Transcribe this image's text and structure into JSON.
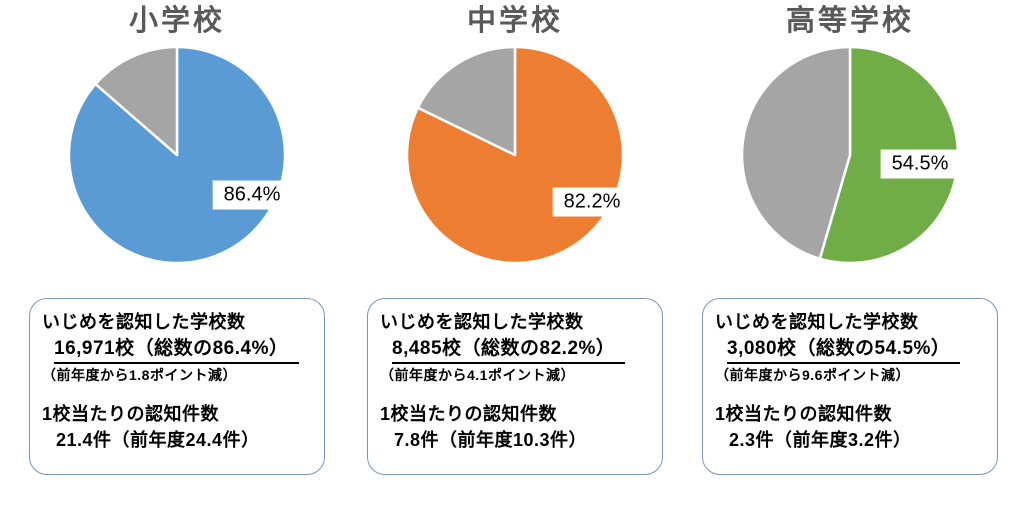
{
  "styles": {
    "title_color": "#595959",
    "box_border": "#7A96B5",
    "slice_gap_color": "#FFFFFF"
  },
  "chart_data": [
    {
      "type": "pie",
      "title": "小学校",
      "values": [
        86.4,
        13.6
      ],
      "colors": [
        "#5B9BD5",
        "#A5A5A5"
      ],
      "data_label": "86.4%",
      "start_angle_deg": 0,
      "direction": "clockwise",
      "legend": "none"
    },
    {
      "type": "pie",
      "title": "中学校",
      "values": [
        82.2,
        17.8
      ],
      "colors": [
        "#ED7D31",
        "#A5A5A5"
      ],
      "data_label": "82.2%",
      "start_angle_deg": 0,
      "direction": "clockwise",
      "legend": "none"
    },
    {
      "type": "pie",
      "title": "高等学校",
      "values": [
        54.5,
        45.5
      ],
      "colors": [
        "#70AD47",
        "#A5A5A5"
      ],
      "data_label": "54.5%",
      "start_angle_deg": 0,
      "direction": "clockwise",
      "legend": "none"
    }
  ],
  "info_boxes": [
    {
      "recognized_label": "いじめを認知した学校数",
      "recognized_value": "16,971校（総数の86.4%）",
      "yoy_change": "（前年度から1.8ポイント減）",
      "per_school_label": "1校当たりの認知件数",
      "per_school_value": "21.4件（前年度24.4件）"
    },
    {
      "recognized_label": "いじめを認知した学校数",
      "recognized_value": "8,485校（総数の82.2%）",
      "yoy_change": "（前年度から4.1ポイント減）",
      "per_school_label": "1校当たりの認知件数",
      "per_school_value": "7.8件（前年度10.3件）"
    },
    {
      "recognized_label": "いじめを認知した学校数",
      "recognized_value": "3,080校（総数の54.5%）",
      "yoy_change": "（前年度から9.6ポイント減）",
      "per_school_label": "1校当たりの認知件数",
      "per_school_value": "2.3件（前年度3.2件）"
    }
  ]
}
